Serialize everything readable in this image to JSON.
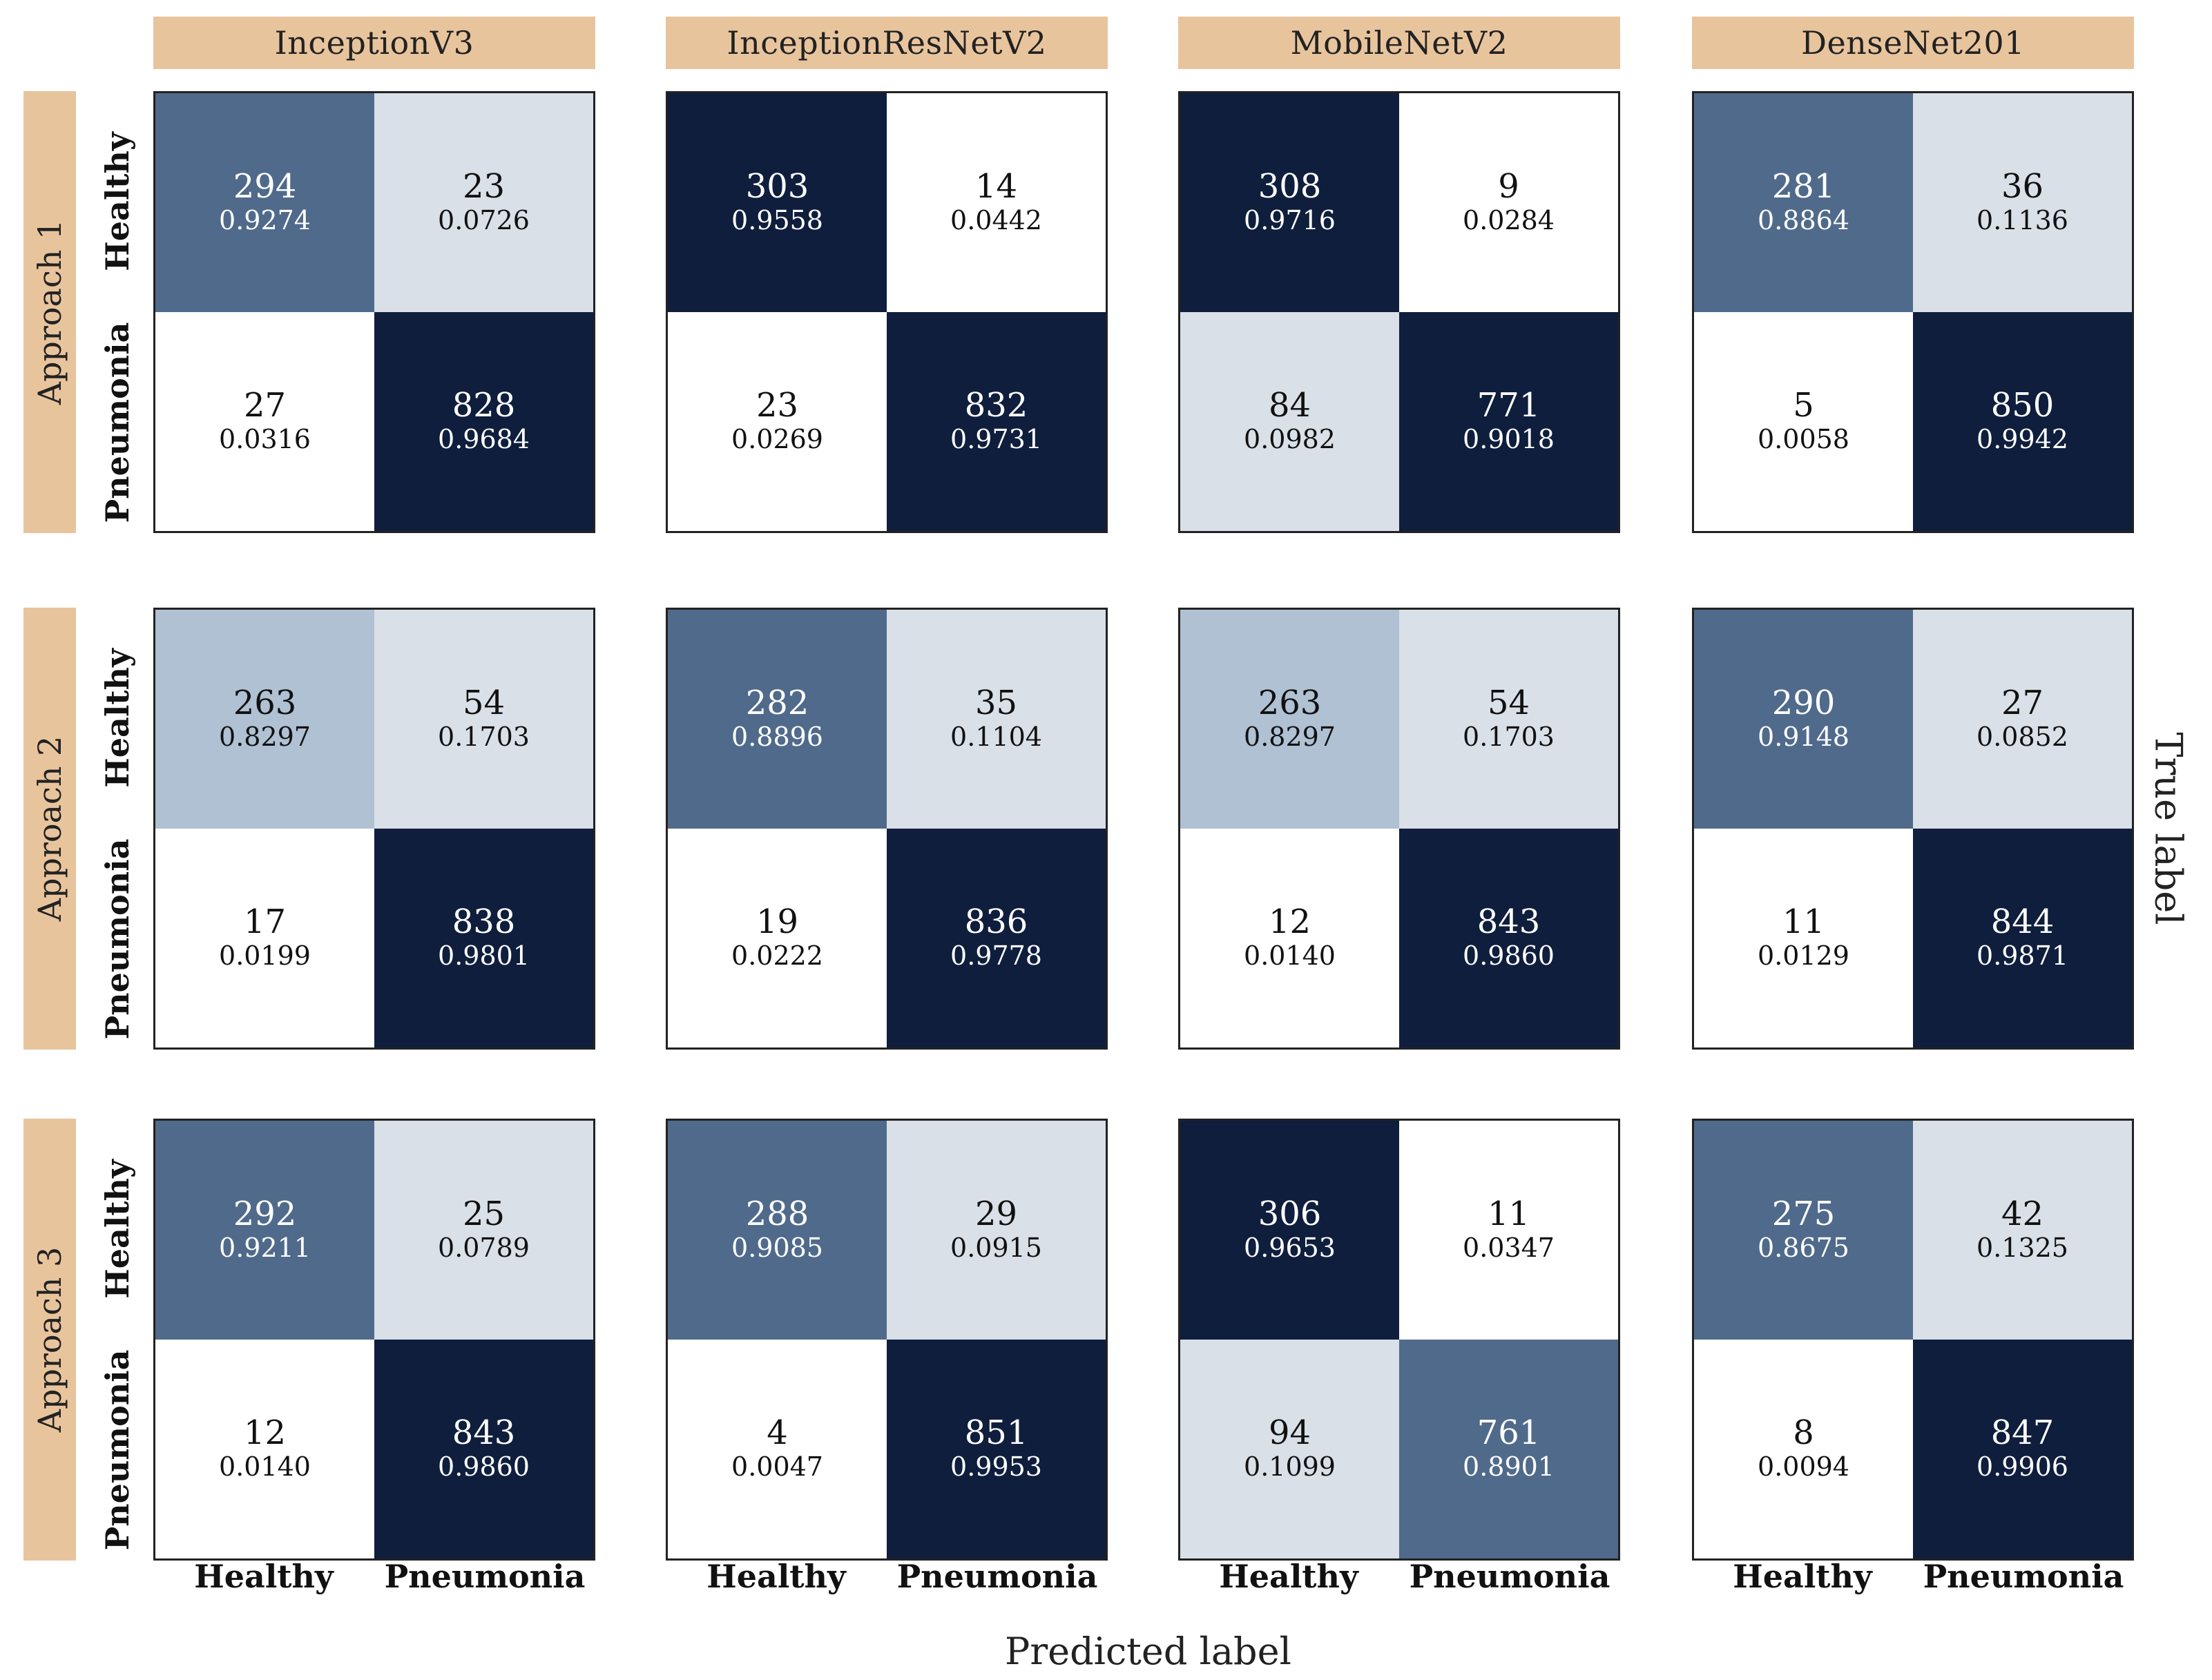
{
  "chart_data": {
    "type": "heatmap",
    "xlabel": "Predicted label",
    "ylabel": "True label",
    "class_labels": [
      "Healthy",
      "Pneumonia"
    ],
    "models": [
      "InceptionV3",
      "InceptionResNetV2",
      "MobileNetV2",
      "DenseNet201"
    ],
    "approaches": [
      "Approach 1",
      "Approach 2",
      "Approach 3"
    ],
    "colors": {
      "darkest": "#0f1e3d",
      "dark": "#506a8b",
      "mid": "#afc1d3",
      "light": "#d9e0e8",
      "white": "#ffffff",
      "header_bg": "#e8c49d"
    },
    "matrices": [
      [
        {
          "counts": [
            [
              294,
              23
            ],
            [
              27,
              828
            ]
          ],
          "ratios": [
            [
              "0.9274",
              "0.0726"
            ],
            [
              "0.0316",
              "0.9684"
            ]
          ],
          "shades": [
            [
              "dark",
              "light"
            ],
            [
              "white",
              "darkest"
            ]
          ]
        },
        {
          "counts": [
            [
              303,
              14
            ],
            [
              23,
              832
            ]
          ],
          "ratios": [
            [
              "0.9558",
              "0.0442"
            ],
            [
              "0.0269",
              "0.9731"
            ]
          ],
          "shades": [
            [
              "darkest",
              "white"
            ],
            [
              "white",
              "darkest"
            ]
          ]
        },
        {
          "counts": [
            [
              308,
              9
            ],
            [
              84,
              771
            ]
          ],
          "ratios": [
            [
              "0.9716",
              "0.0284"
            ],
            [
              "0.0982",
              "0.9018"
            ]
          ],
          "shades": [
            [
              "darkest",
              "white"
            ],
            [
              "light",
              "darkest"
            ]
          ]
        },
        {
          "counts": [
            [
              281,
              36
            ],
            [
              5,
              850
            ]
          ],
          "ratios": [
            [
              "0.8864",
              "0.1136"
            ],
            [
              "0.0058",
              "0.9942"
            ]
          ],
          "shades": [
            [
              "dark",
              "light"
            ],
            [
              "white",
              "darkest"
            ]
          ]
        }
      ],
      [
        {
          "counts": [
            [
              263,
              54
            ],
            [
              17,
              838
            ]
          ],
          "ratios": [
            [
              "0.8297",
              "0.1703"
            ],
            [
              "0.0199",
              "0.9801"
            ]
          ],
          "shades": [
            [
              "mid",
              "light"
            ],
            [
              "white",
              "darkest"
            ]
          ]
        },
        {
          "counts": [
            [
              282,
              35
            ],
            [
              19,
              836
            ]
          ],
          "ratios": [
            [
              "0.8896",
              "0.1104"
            ],
            [
              "0.0222",
              "0.9778"
            ]
          ],
          "shades": [
            [
              "dark",
              "light"
            ],
            [
              "white",
              "darkest"
            ]
          ]
        },
        {
          "counts": [
            [
              263,
              54
            ],
            [
              12,
              843
            ]
          ],
          "ratios": [
            [
              "0.8297",
              "0.1703"
            ],
            [
              "0.0140",
              "0.9860"
            ]
          ],
          "shades": [
            [
              "mid",
              "light"
            ],
            [
              "white",
              "darkest"
            ]
          ]
        },
        {
          "counts": [
            [
              290,
              27
            ],
            [
              11,
              844
            ]
          ],
          "ratios": [
            [
              "0.9148",
              "0.0852"
            ],
            [
              "0.0129",
              "0.9871"
            ]
          ],
          "shades": [
            [
              "dark",
              "light"
            ],
            [
              "white",
              "darkest"
            ]
          ]
        }
      ],
      [
        {
          "counts": [
            [
              292,
              25
            ],
            [
              12,
              843
            ]
          ],
          "ratios": [
            [
              "0.9211",
              "0.0789"
            ],
            [
              "0.0140",
              "0.9860"
            ]
          ],
          "shades": [
            [
              "dark",
              "light"
            ],
            [
              "white",
              "darkest"
            ]
          ]
        },
        {
          "counts": [
            [
              288,
              29
            ],
            [
              4,
              851
            ]
          ],
          "ratios": [
            [
              "0.9085",
              "0.0915"
            ],
            [
              "0.0047",
              "0.9953"
            ]
          ],
          "shades": [
            [
              "dark",
              "light"
            ],
            [
              "white",
              "darkest"
            ]
          ]
        },
        {
          "counts": [
            [
              306,
              11
            ],
            [
              94,
              761
            ]
          ],
          "ratios": [
            [
              "0.9653",
              "0.0347"
            ],
            [
              "0.1099",
              "0.8901"
            ]
          ],
          "shades": [
            [
              "darkest",
              "white"
            ],
            [
              "light",
              "dark"
            ]
          ]
        },
        {
          "counts": [
            [
              275,
              42
            ],
            [
              8,
              847
            ]
          ],
          "ratios": [
            [
              "0.8675",
              "0.1325"
            ],
            [
              "0.0094",
              "0.9906"
            ]
          ],
          "shades": [
            [
              "dark",
              "light"
            ],
            [
              "white",
              "darkest"
            ]
          ]
        }
      ]
    ]
  }
}
